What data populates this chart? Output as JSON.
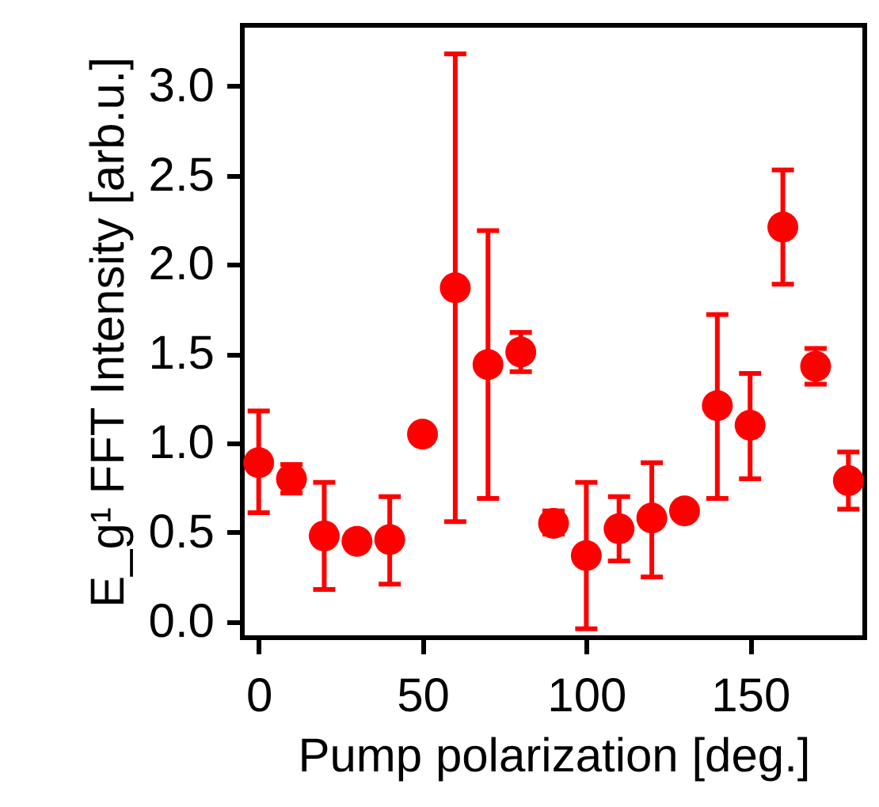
{
  "chart_data": {
    "type": "scatter",
    "xlabel": "Pump polarization [deg.]",
    "ylabel": "E_g¹ FFT Intensity [arb.u.]",
    "x": [
      0,
      10,
      20,
      30,
      40,
      50,
      60,
      70,
      80,
      90,
      100,
      110,
      120,
      130,
      140,
      150,
      160,
      170,
      180
    ],
    "series": [
      {
        "color": "#ff0000",
        "values": [
          0.89,
          0.8,
          0.48,
          0.45,
          0.46,
          1.05,
          1.87,
          1.44,
          1.51,
          0.55,
          0.37,
          0.52,
          0.58,
          0.62,
          1.21,
          1.1,
          2.21,
          1.43,
          0.79
        ],
        "errors": [
          [
            0.61,
            1.18
          ],
          [
            0.72,
            0.88
          ],
          [
            0.18,
            0.78
          ],
          null,
          [
            0.21,
            0.7
          ],
          null,
          [
            0.56,
            3.18
          ],
          [
            0.69,
            2.19
          ],
          [
            1.4,
            1.62
          ],
          [
            0.49,
            0.62
          ],
          [
            -0.04,
            0.78
          ],
          [
            0.34,
            0.7
          ],
          [
            0.25,
            0.89
          ],
          null,
          [
            0.69,
            1.72
          ],
          [
            0.8,
            1.39
          ],
          [
            1.89,
            2.53
          ],
          [
            1.33,
            1.53
          ],
          [
            0.63,
            0.95
          ]
        ]
      }
    ],
    "xlim": [
      -5,
      185
    ],
    "xticks": [
      0,
      50,
      100,
      150
    ],
    "ylim": [
      -0.09,
      3.34
    ],
    "yticks": [
      {
        "value": 0,
        "label": "0.0"
      },
      {
        "value": 0.5,
        "label": "0.5"
      },
      {
        "value": 1,
        "label": "1.0"
      },
      {
        "value": 1.5,
        "label": "1.5"
      },
      {
        "value": 2,
        "label": "2.0"
      },
      {
        "value": 2.5,
        "label": "2.5"
      },
      {
        "value": 3,
        "label": "3.0"
      }
    ],
    "marker": "circle",
    "grid": false
  }
}
